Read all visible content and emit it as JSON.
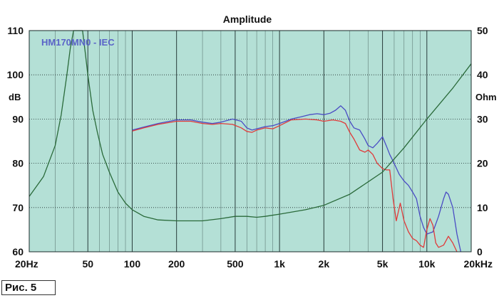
{
  "caption": "Рис. 5",
  "chart_data": {
    "type": "line",
    "title": "Amplitude",
    "legend_label": "HM170MN0 - IEC",
    "legend_placement": "top-left",
    "grid": true,
    "x_scale": "log",
    "xlim": [
      20,
      20000
    ],
    "x_ticks": [
      {
        "value": 20,
        "label": "20Hz"
      },
      {
        "value": 50,
        "label": "50"
      },
      {
        "value": 100,
        "label": "100"
      },
      {
        "value": 200,
        "label": "200"
      },
      {
        "value": 500,
        "label": "500"
      },
      {
        "value": 1000,
        "label": "1k"
      },
      {
        "value": 2000,
        "label": "2k"
      },
      {
        "value": 5000,
        "label": "5k"
      },
      {
        "value": 10000,
        "label": "10k"
      },
      {
        "value": 20000,
        "label": "20kHz"
      }
    ],
    "y_left": {
      "unit": "dB",
      "ylim": [
        60,
        110
      ],
      "ticks": [
        60,
        70,
        80,
        90,
        100,
        110
      ]
    },
    "y_right": {
      "unit": "Ohm",
      "ylim": [
        0,
        50
      ],
      "ticks": [
        0,
        10,
        20,
        30,
        40,
        50
      ]
    },
    "colors": {
      "background": "#b4e0d6",
      "grid": "#1a2a2a",
      "blue": "#4a4cc4",
      "red": "#e03a3a",
      "green": "#2a6a3a"
    },
    "series": [
      {
        "color": "blue",
        "axis": "left",
        "points": [
          [
            100,
            87.5
          ],
          [
            120,
            88.2
          ],
          [
            150,
            89.0
          ],
          [
            200,
            89.8
          ],
          [
            250,
            89.8
          ],
          [
            300,
            89.3
          ],
          [
            350,
            89.0
          ],
          [
            400,
            89.3
          ],
          [
            480,
            90.0
          ],
          [
            550,
            89.5
          ],
          [
            600,
            88.0
          ],
          [
            650,
            87.5
          ],
          [
            700,
            87.8
          ],
          [
            800,
            88.3
          ],
          [
            900,
            88.5
          ],
          [
            1000,
            89.0
          ],
          [
            1100,
            89.5
          ],
          [
            1200,
            90.0
          ],
          [
            1400,
            90.5
          ],
          [
            1600,
            91.0
          ],
          [
            1800,
            91.2
          ],
          [
            2000,
            91.0
          ],
          [
            2200,
            91.3
          ],
          [
            2400,
            92.0
          ],
          [
            2600,
            93.0
          ],
          [
            2800,
            92.0
          ],
          [
            3000,
            89.5
          ],
          [
            3200,
            88.0
          ],
          [
            3500,
            87.5
          ],
          [
            3800,
            85.5
          ],
          [
            4000,
            84.0
          ],
          [
            4300,
            83.5
          ],
          [
            4600,
            84.5
          ],
          [
            5000,
            86.0
          ],
          [
            5300,
            84.0
          ],
          [
            5600,
            82.0
          ],
          [
            6000,
            80.0
          ],
          [
            6500,
            77.5
          ],
          [
            7000,
            76.0
          ],
          [
            7500,
            75.0
          ],
          [
            8000,
            73.5
          ],
          [
            8500,
            72.0
          ],
          [
            9000,
            68.0
          ],
          [
            9500,
            65.5
          ],
          [
            10000,
            64.0
          ],
          [
            11000,
            64.5
          ],
          [
            12000,
            68.0
          ],
          [
            13000,
            72.0
          ],
          [
            13500,
            73.5
          ],
          [
            14000,
            73.0
          ],
          [
            15000,
            70.0
          ],
          [
            16000,
            64.0
          ],
          [
            17000,
            60.0
          ]
        ]
      },
      {
        "color": "red",
        "axis": "left",
        "points": [
          [
            100,
            87.3
          ],
          [
            120,
            88.0
          ],
          [
            150,
            88.8
          ],
          [
            200,
            89.5
          ],
          [
            250,
            89.5
          ],
          [
            300,
            89.0
          ],
          [
            350,
            88.8
          ],
          [
            400,
            89.0
          ],
          [
            480,
            88.8
          ],
          [
            550,
            88.0
          ],
          [
            600,
            87.2
          ],
          [
            650,
            87.0
          ],
          [
            700,
            87.5
          ],
          [
            800,
            88.0
          ],
          [
            900,
            87.8
          ],
          [
            1000,
            88.5
          ],
          [
            1100,
            89.2
          ],
          [
            1200,
            89.8
          ],
          [
            1500,
            90.0
          ],
          [
            1800,
            89.8
          ],
          [
            2000,
            89.5
          ],
          [
            2300,
            89.8
          ],
          [
            2600,
            89.5
          ],
          [
            2800,
            89.0
          ],
          [
            3000,
            87.0
          ],
          [
            3200,
            85.5
          ],
          [
            3500,
            83.0
          ],
          [
            3800,
            82.5
          ],
          [
            4000,
            83.0
          ],
          [
            4300,
            82.0
          ],
          [
            4600,
            80.0
          ],
          [
            5000,
            78.8
          ],
          [
            5300,
            78.5
          ],
          [
            5600,
            78.5
          ],
          [
            5900,
            72.0
          ],
          [
            6200,
            67.0
          ],
          [
            6600,
            71.0
          ],
          [
            7000,
            67.0
          ],
          [
            7500,
            64.5
          ],
          [
            8000,
            63.0
          ],
          [
            8500,
            62.5
          ],
          [
            9000,
            61.5
          ],
          [
            9500,
            61.0
          ],
          [
            10000,
            65.0
          ],
          [
            10500,
            67.5
          ],
          [
            11000,
            66.0
          ],
          [
            11500,
            62.0
          ],
          [
            12000,
            61.0
          ],
          [
            13000,
            61.5
          ],
          [
            14000,
            63.5
          ],
          [
            15000,
            62.0
          ],
          [
            16000,
            60.0
          ]
        ]
      },
      {
        "color": "green",
        "axis": "right",
        "points": [
          [
            20,
            12.5
          ],
          [
            25,
            17.0
          ],
          [
            30,
            24.0
          ],
          [
            33,
            31.0
          ],
          [
            36,
            40.0
          ],
          [
            38,
            46.0
          ],
          [
            40,
            50.0
          ],
          [
            46,
            50.0
          ],
          [
            48,
            45.0
          ],
          [
            50,
            40.0
          ],
          [
            54,
            32.0
          ],
          [
            58,
            27.0
          ],
          [
            63,
            22.0
          ],
          [
            70,
            18.0
          ],
          [
            80,
            13.5
          ],
          [
            90,
            11.0
          ],
          [
            100,
            9.5
          ],
          [
            120,
            8.0
          ],
          [
            150,
            7.2
          ],
          [
            200,
            7.0
          ],
          [
            250,
            7.0
          ],
          [
            300,
            7.0
          ],
          [
            400,
            7.5
          ],
          [
            500,
            8.0
          ],
          [
            600,
            8.0
          ],
          [
            700,
            7.8
          ],
          [
            800,
            8.0
          ],
          [
            1000,
            8.5
          ],
          [
            1500,
            9.5
          ],
          [
            2000,
            10.5
          ],
          [
            3000,
            13.0
          ],
          [
            5000,
            18.0
          ],
          [
            7000,
            23.5
          ],
          [
            10000,
            30.0
          ],
          [
            15000,
            37.0
          ],
          [
            20000,
            42.5
          ]
        ]
      }
    ]
  }
}
